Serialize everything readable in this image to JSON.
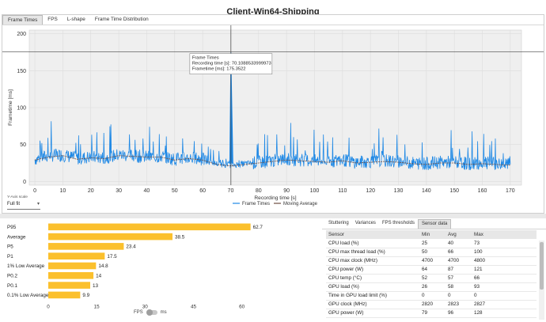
{
  "window": {
    "title": "Client-Win64-Shipping"
  },
  "top_tabs": [
    "Frame Times",
    "FPS",
    "L-shape",
    "Frame Time Distribution"
  ],
  "top_tabs_active": 0,
  "frametime_chart": {
    "chart_data": {
      "type": "line",
      "xlabel": "Recording time [s]",
      "ylabel": "Frametime [ms]",
      "xlim": [
        -2,
        174
      ],
      "ylim": [
        -5,
        205
      ],
      "xticks": [
        0,
        10,
        20,
        30,
        40,
        50,
        60,
        70,
        80,
        90,
        100,
        110,
        120,
        130,
        140,
        150,
        160,
        170
      ],
      "yticks": [
        0,
        50,
        100,
        150,
        200
      ],
      "grid": true,
      "legend_position": "bottom-right",
      "series": [
        {
          "name": "Frame Times",
          "color": "#1e88e5",
          "x": [
            0,
            5,
            10,
            15,
            20,
            25,
            30,
            35,
            40,
            45,
            50,
            55,
            60,
            65,
            70,
            75,
            80,
            85,
            90,
            95,
            100,
            105,
            110,
            115,
            120,
            125,
            130,
            135,
            140,
            145,
            150,
            155,
            160,
            165,
            170
          ],
          "y": [
            30,
            35,
            36,
            31,
            33,
            32,
            36,
            35,
            33,
            34,
            30,
            32,
            30,
            24,
            22,
            24,
            26,
            28,
            30,
            29,
            28,
            27,
            29,
            26,
            27,
            28,
            27,
            25,
            24,
            26,
            26,
            24,
            25,
            24,
            23
          ]
        },
        {
          "name": "Moving Average",
          "color": "#6d4c41",
          "x": [
            0,
            5,
            10,
            15,
            20,
            25,
            30,
            35,
            40,
            45,
            50,
            55,
            60,
            65,
            70,
            75,
            80,
            85,
            90,
            95,
            100,
            105,
            110,
            115,
            120,
            125,
            130,
            135,
            140,
            145,
            150,
            155,
            160,
            165,
            170
          ],
          "y": [
            29,
            33,
            35,
            30,
            32,
            31,
            35,
            34,
            33,
            33,
            29,
            31,
            29,
            23,
            21,
            23,
            25,
            27,
            29,
            28,
            27,
            26,
            28,
            25,
            26,
            27,
            26,
            24,
            23,
            25,
            25,
            23,
            24,
            23,
            22
          ]
        }
      ],
      "spike": {
        "x": 70.1088533999973,
        "y": 175.3522
      }
    },
    "tooltip": {
      "title": "Frame Times",
      "line1": "Recording time [s]: 70.1088533999973",
      "line2": "Frametime [ms]: 175.3522"
    },
    "legend": {
      "frame_times": "Frame Times",
      "moving_average": "Moving Average"
    }
  },
  "yaxis_scale": {
    "label": "Y-Axis scale",
    "value": "Full fit"
  },
  "stats_chart": {
    "chart_data": {
      "type": "bar",
      "orientation": "horizontal",
      "categories": [
        "P95",
        "Average",
        "P5",
        "P1",
        "1% Low Average",
        "P0.2",
        "P0.1",
        "0.1% Low Average"
      ],
      "values": [
        62.7,
        38.5,
        23.4,
        17.5,
        14.8,
        14,
        13,
        9.9
      ],
      "labels": [
        "62.7",
        "38.5",
        "23.4",
        "17.5",
        "14.8",
        "14",
        "13",
        "9.9"
      ],
      "xlim": [
        0,
        65
      ],
      "xticks": [
        0,
        15,
        30,
        45,
        60
      ],
      "color": "#fbc02d"
    }
  },
  "fps_toggle": {
    "left": "FPS",
    "right": "ms"
  },
  "sensor_tabs": [
    "Stuttering",
    "Variances",
    "FPS thresholds",
    "Sensor data"
  ],
  "sensor_tabs_active": 3,
  "sensor_table": {
    "headers": [
      "Sensor",
      "Min",
      "Avg",
      "Max"
    ],
    "rows": [
      [
        "CPU load (%)",
        "25",
        "40",
        "73"
      ],
      [
        "CPU max thread load (%)",
        "50",
        "66",
        "100"
      ],
      [
        "CPU max clock (MHz)",
        "4700",
        "4700",
        "4800"
      ],
      [
        "CPU power (W)",
        "64",
        "87",
        "121"
      ],
      [
        "CPU temp (°C)",
        "52",
        "57",
        "66"
      ],
      [
        "GPU load (%)",
        "26",
        "58",
        "93"
      ],
      [
        "Time in GPU load limit (%)",
        "0",
        "0",
        "0"
      ],
      [
        "GPU clock (MHz)",
        "2820",
        "2823",
        "2827"
      ],
      [
        "GPU power (W)",
        "79",
        "96",
        "128"
      ]
    ]
  }
}
